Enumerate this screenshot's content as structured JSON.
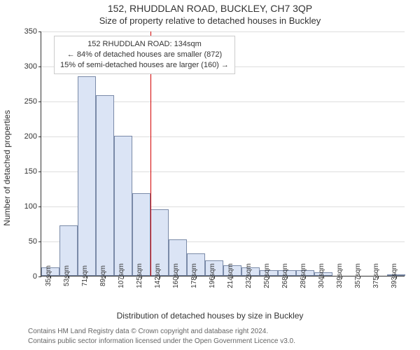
{
  "header": {
    "address": "152, RHUDDLAN ROAD, BUCKLEY, CH7 3QP",
    "subtitle": "Size of property relative to detached houses in Buckley"
  },
  "chart": {
    "type": "histogram",
    "ylabel": "Number of detached properties",
    "xlabel": "Distribution of detached houses by size in Buckley",
    "ylim": [
      0,
      350
    ],
    "ytick_step": 50,
    "background_color": "#ffffff",
    "grid_color": "#dddddd",
    "axis_color": "#333333",
    "bar_fill": "#dbe4f5",
    "bar_stroke": "#7a8aa8",
    "bar_width_ratio": 0.98,
    "categories": [
      "35sqm",
      "53sqm",
      "71sqm",
      "89sqm",
      "107sqm",
      "125sqm",
      "142sqm",
      "160sqm",
      "178sqm",
      "196sqm",
      "214sqm",
      "232sqm",
      "250sqm",
      "268sqm",
      "286sqm",
      "304sqm",
      "339sqm",
      "357sqm",
      "375sqm",
      "393sqm"
    ],
    "values": [
      12,
      72,
      285,
      258,
      200,
      118,
      95,
      52,
      32,
      22,
      15,
      12,
      8,
      8,
      8,
      5,
      0,
      0,
      0,
      2
    ],
    "reference_line": {
      "index_position": 6.0,
      "color": "#d40000",
      "width": 1
    },
    "annotation": {
      "line1": "152 RHUDDLAN ROAD: 134sqm",
      "line2": "← 84% of detached houses are smaller (872)",
      "line3": "15% of semi-detached houses are larger (160) →",
      "border_color": "#cccccc",
      "background": "#ffffff",
      "fontsize": 11
    },
    "tick_fontsize": 11,
    "label_fontsize": 12,
    "title_fontsize": 14
  },
  "footer": {
    "line1": "Contains HM Land Registry data © Crown copyright and database right 2024.",
    "line2": "Contains public sector information licensed under the Open Government Licence v3.0."
  }
}
